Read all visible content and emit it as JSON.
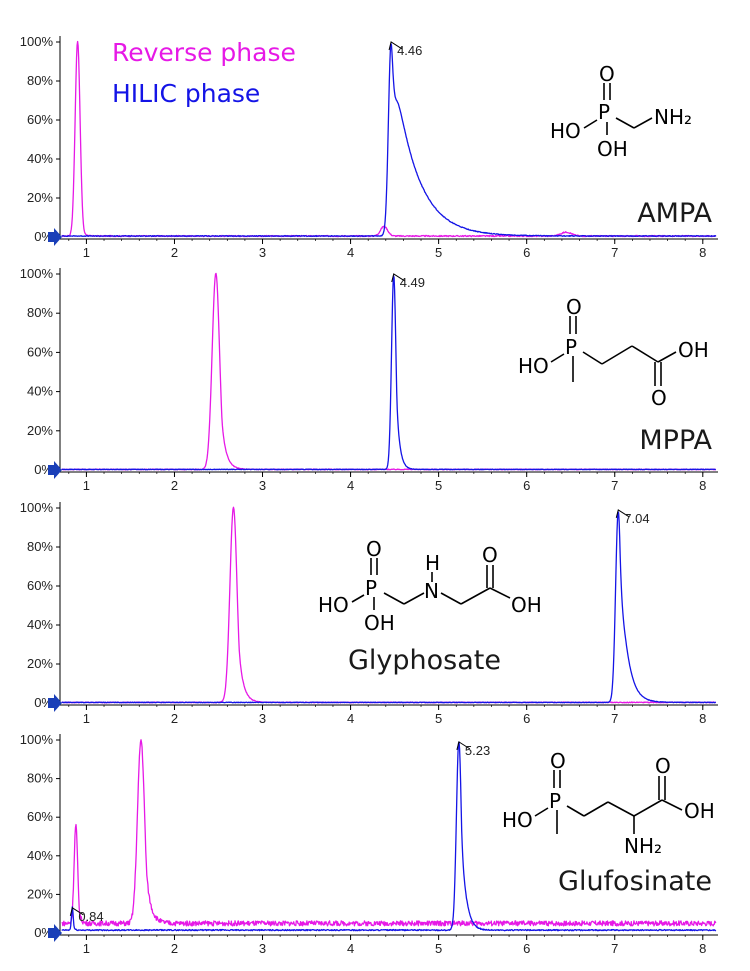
{
  "legend": [
    {
      "label": "Reverse phase",
      "color": "#e619e6"
    },
    {
      "label": "HILIC phase",
      "color": "#1414e6"
    }
  ],
  "chart_data": [
    {
      "type": "line",
      "compound": "AMPA",
      "x_ticks": [
        1,
        2,
        3,
        4,
        5,
        6,
        7,
        8
      ],
      "y_ticks": [
        "0%",
        "20%",
        "40%",
        "60%",
        "80%",
        "100%"
      ],
      "xlim": [
        0.7,
        8.15
      ],
      "ylim": [
        0,
        100
      ],
      "series": [
        {
          "name": "Reverse phase",
          "color": "#e619e6",
          "baseline": 0.5,
          "noise": 0.3,
          "peaks": [
            {
              "rt": 0.9,
              "height": 100,
              "sigma": 0.028,
              "tail": 0.02
            },
            {
              "rt": 4.38,
              "height": 5,
              "sigma": 0.04,
              "tail": 0.02
            },
            {
              "rt": 6.45,
              "height": 2,
              "sigma": 0.06,
              "tail": 0.02
            }
          ]
        },
        {
          "name": "HILIC phase",
          "color": "#1414e6",
          "baseline": 0.5,
          "noise": 0.2,
          "peaks": [
            {
              "rt": 4.46,
              "height": 99,
              "sigma": 0.03,
              "tail": 0.26,
              "label": "4.46"
            }
          ]
        }
      ]
    },
    {
      "type": "line",
      "compound": "MPPA",
      "x_ticks": [
        1,
        2,
        3,
        4,
        5,
        6,
        7,
        8
      ],
      "y_ticks": [
        "0%",
        "20%",
        "40%",
        "60%",
        "80%",
        "100%"
      ],
      "xlim": [
        0.7,
        8.15
      ],
      "ylim": [
        0,
        100
      ],
      "series": [
        {
          "name": "Reverse phase",
          "color": "#e619e6",
          "baseline": 0.3,
          "noise": 0.2,
          "peaks": [
            {
              "rt": 2.47,
              "height": 100,
              "sigma": 0.042,
              "tail": 0.05
            }
          ]
        },
        {
          "name": "HILIC phase",
          "color": "#1414e6",
          "baseline": 0.3,
          "noise": 0.15,
          "peaks": [
            {
              "rt": 4.49,
              "height": 99,
              "sigma": 0.025,
              "tail": 0.035,
              "label": "4.49"
            }
          ]
        }
      ]
    },
    {
      "type": "line",
      "compound": "Glyphosate",
      "x_ticks": [
        1,
        2,
        3,
        4,
        5,
        6,
        7,
        8
      ],
      "y_ticks": [
        "0%",
        "20%",
        "40%",
        "60%",
        "80%",
        "100%"
      ],
      "xlim": [
        0.7,
        8.15
      ],
      "ylim": [
        0,
        100
      ],
      "series": [
        {
          "name": "Reverse phase",
          "color": "#e619e6",
          "baseline": 0.3,
          "noise": 0.2,
          "peaks": [
            {
              "rt": 2.67,
              "height": 100,
              "sigma": 0.04,
              "tail": 0.05
            }
          ]
        },
        {
          "name": "HILIC phase",
          "color": "#1414e6",
          "baseline": 0.3,
          "noise": 0.15,
          "peaks": [
            {
              "rt": 7.04,
              "height": 98,
              "sigma": 0.03,
              "tail": 0.08,
              "label": "7.04"
            }
          ]
        }
      ]
    },
    {
      "type": "line",
      "compound": "Glufosinate",
      "x_ticks": [
        1,
        2,
        3,
        4,
        5,
        6,
        7,
        8
      ],
      "y_ticks": [
        "0%",
        "20%",
        "40%",
        "60%",
        "80%",
        "100%"
      ],
      "xlim": [
        0.7,
        8.15
      ],
      "ylim": [
        0,
        100
      ],
      "series": [
        {
          "name": "Reverse phase",
          "color": "#e619e6",
          "baseline": 5,
          "noise": 1.3,
          "peaks": [
            {
              "rt": 0.88,
              "height": 51,
              "sigma": 0.02,
              "tail": 0.02
            },
            {
              "rt": 1.62,
              "height": 95,
              "sigma": 0.04,
              "tail": 0.05
            }
          ]
        },
        {
          "name": "HILIC phase",
          "color": "#1414e6",
          "baseline": 1.5,
          "noise": 0.3,
          "peaks": [
            {
              "rt": 0.84,
              "height": 12,
              "sigma": 0.01,
              "tail": 0.01,
              "label": "0.84"
            },
            {
              "rt": 5.23,
              "height": 98,
              "sigma": 0.028,
              "tail": 0.05,
              "label": "5.23"
            }
          ]
        }
      ]
    }
  ],
  "structures": {
    "ampa": {
      "o": "O",
      "p": "P",
      "ho": "HO",
      "oh": "OH",
      "nh2": "NH₂"
    },
    "mppa": {
      "o": "O",
      "p": "P",
      "ho": "HO",
      "oh": "OH",
      "o2": "O"
    },
    "glyphosate": {
      "o": "O",
      "p": "P",
      "ho": "HO",
      "oh1": "OH",
      "h": "H",
      "n": "N",
      "o2": "O",
      "oh2": "OH"
    },
    "glufosinate": {
      "o": "O",
      "p": "P",
      "ho": "HO",
      "o2": "O",
      "oh": "OH",
      "nh2": "NH₂"
    }
  }
}
